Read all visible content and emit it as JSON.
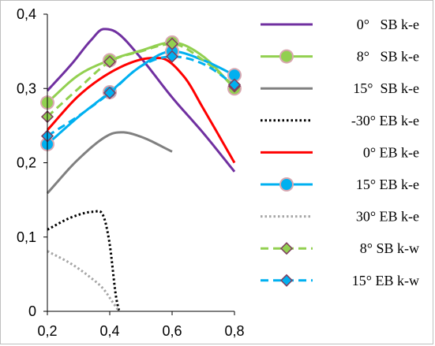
{
  "chart_data": {
    "type": "line",
    "title": "",
    "xlabel": "",
    "ylabel": "",
    "xlim": [
      0.2,
      0.8
    ],
    "ylim": [
      0,
      0.4
    ],
    "x_ticks": [
      0.2,
      0.4,
      0.6,
      0.8
    ],
    "y_ticks": [
      0,
      0.1,
      0.2,
      0.3,
      0.4
    ],
    "x_tick_labels": [
      "0,2",
      "0,4",
      "0,6",
      "0,8"
    ],
    "y_tick_labels": [
      "0",
      "0,1",
      "0,2",
      "0,3",
      "0,4"
    ],
    "grid": false,
    "legend_position": "right",
    "series": [
      {
        "name": "0°   SB k-e",
        "color": "#7030a0",
        "style": "solid",
        "marker": "none",
        "x": [
          0.2,
          0.28,
          0.34,
          0.38,
          0.42,
          0.5,
          0.6,
          0.7,
          0.8
        ],
        "y": [
          0.297,
          0.334,
          0.365,
          0.38,
          0.376,
          0.341,
          0.288,
          0.24,
          0.188
        ]
      },
      {
        "name": "8°   SB k-e",
        "color": "#92d050",
        "style": "solid",
        "marker": "circle",
        "marker_x": [
          0.2,
          0.4,
          0.6,
          0.8
        ],
        "x": [
          0.2,
          0.3,
          0.4,
          0.5,
          0.6,
          0.7,
          0.8
        ],
        "y": [
          0.281,
          0.318,
          0.338,
          0.351,
          0.362,
          0.343,
          0.3
        ]
      },
      {
        "name": "15°  SB k-e",
        "color": "#808080",
        "style": "solid",
        "marker": "none",
        "x": [
          0.2,
          0.3,
          0.4,
          0.44,
          0.5,
          0.6
        ],
        "y": [
          0.159,
          0.205,
          0.238,
          0.241,
          0.235,
          0.215
        ]
      },
      {
        "name": "-30° EB k-e",
        "color": "#000000",
        "style": "dotted",
        "marker": "none",
        "x": [
          0.2,
          0.28,
          0.35,
          0.38,
          0.4,
          0.42,
          0.43
        ],
        "y": [
          0.11,
          0.127,
          0.134,
          0.128,
          0.09,
          0.02,
          0.0
        ]
      },
      {
        "name": "0° EB k-e",
        "color": "#ff0000",
        "style": "solid",
        "marker": "none",
        "x": [
          0.2,
          0.3,
          0.4,
          0.5,
          0.56,
          0.64,
          0.7,
          0.8
        ],
        "y": [
          0.244,
          0.29,
          0.321,
          0.339,
          0.341,
          0.315,
          0.273,
          0.2
        ]
      },
      {
        "name": "15° EB k-e",
        "color": "#00b0f0",
        "style": "solid",
        "marker": "circle",
        "marker_x": [
          0.2,
          0.4,
          0.6,
          0.8
        ],
        "x": [
          0.2,
          0.3,
          0.4,
          0.5,
          0.6,
          0.7,
          0.8
        ],
        "y": [
          0.225,
          0.262,
          0.295,
          0.33,
          0.35,
          0.338,
          0.318
        ]
      },
      {
        "name": "30° EB k-e",
        "color": "#a6a6a6",
        "style": "dotted",
        "marker": "none",
        "x": [
          0.2,
          0.28,
          0.34,
          0.38,
          0.41,
          0.43
        ],
        "y": [
          0.081,
          0.063,
          0.045,
          0.03,
          0.012,
          0.0
        ]
      },
      {
        "name": "8° SB k-w",
        "color": "#92d050",
        "style": "dashed",
        "marker": "diamond",
        "marker_x": [
          0.2,
          0.4,
          0.6,
          0.8
        ],
        "x": [
          0.2,
          0.3,
          0.4,
          0.5,
          0.6,
          0.7,
          0.8
        ],
        "y": [
          0.262,
          0.3,
          0.336,
          0.35,
          0.36,
          0.338,
          0.303
        ]
      },
      {
        "name": "15° EB k-w",
        "color": "#00b0f0",
        "style": "dashed",
        "marker": "diamond",
        "marker_x": [
          0.2,
          0.4,
          0.6,
          0.8
        ],
        "x": [
          0.2,
          0.3,
          0.4,
          0.5,
          0.6,
          0.7,
          0.8
        ],
        "y": [
          0.236,
          0.263,
          0.294,
          0.33,
          0.343,
          0.333,
          0.305
        ]
      }
    ]
  }
}
